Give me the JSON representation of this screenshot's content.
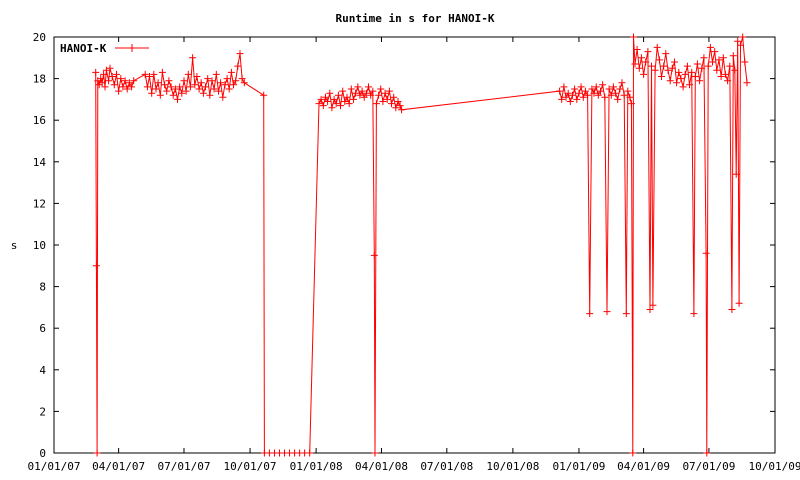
{
  "chart_data": {
    "type": "line",
    "title": "Runtime in s for HANOI-K",
    "xlabel": "",
    "ylabel": "s",
    "x_ticks": [
      "01/01/07",
      "04/01/07",
      "07/01/07",
      "10/01/07",
      "01/01/08",
      "04/01/08",
      "07/01/08",
      "10/01/08",
      "01/01/09",
      "04/01/09",
      "07/01/09",
      "10/01/09"
    ],
    "y_ticks": [
      "0",
      "2",
      "4",
      "6",
      "8",
      "10",
      "12",
      "14",
      "16",
      "18",
      "20"
    ],
    "xlim": [
      "2007-01-01",
      "2009-10-01"
    ],
    "ylim": [
      0,
      20
    ],
    "grid": false,
    "legend_position": "top-left",
    "series": [
      {
        "name": "HANOI-K",
        "color": "#ff0000",
        "marker": "plus",
        "points": [
          [
            "2007-02-28",
            18.3
          ],
          [
            "2007-03-01",
            9.0
          ],
          [
            "2007-03-02",
            0.0
          ],
          [
            "2007-03-03",
            17.9
          ],
          [
            "2007-03-05",
            17.7
          ],
          [
            "2007-03-07",
            18.0
          ],
          [
            "2007-03-09",
            17.8
          ],
          [
            "2007-03-11",
            18.2
          ],
          [
            "2007-03-13",
            17.6
          ],
          [
            "2007-03-15",
            18.4
          ],
          [
            "2007-03-18",
            17.9
          ],
          [
            "2007-03-20",
            18.5
          ],
          [
            "2007-03-23",
            18.1
          ],
          [
            "2007-03-26",
            17.7
          ],
          [
            "2007-03-29",
            18.2
          ],
          [
            "2007-04-01",
            17.4
          ],
          [
            "2007-04-04",
            18.0
          ],
          [
            "2007-04-07",
            17.6
          ],
          [
            "2007-04-10",
            17.9
          ],
          [
            "2007-04-13",
            17.5
          ],
          [
            "2007-04-16",
            17.8
          ],
          [
            "2007-04-19",
            17.6
          ],
          [
            "2007-04-22",
            17.9
          ],
          [
            "2007-05-08",
            18.2
          ],
          [
            "2007-05-11",
            17.6
          ],
          [
            "2007-05-14",
            18.1
          ],
          [
            "2007-05-17",
            17.3
          ],
          [
            "2007-05-20",
            18.2
          ],
          [
            "2007-05-23",
            17.5
          ],
          [
            "2007-05-26",
            17.8
          ],
          [
            "2007-05-29",
            17.2
          ],
          [
            "2007-06-01",
            18.3
          ],
          [
            "2007-06-04",
            17.7
          ],
          [
            "2007-06-07",
            17.4
          ],
          [
            "2007-06-10",
            17.9
          ],
          [
            "2007-06-13",
            17.6
          ],
          [
            "2007-06-16",
            17.2
          ],
          [
            "2007-06-19",
            17.5
          ],
          [
            "2007-06-22",
            17.0
          ],
          [
            "2007-06-25",
            17.6
          ],
          [
            "2007-06-28",
            17.3
          ],
          [
            "2007-07-01",
            17.9
          ],
          [
            "2007-07-04",
            17.4
          ],
          [
            "2007-07-07",
            18.2
          ],
          [
            "2007-07-10",
            17.6
          ],
          [
            "2007-07-13",
            19.0
          ],
          [
            "2007-07-16",
            17.7
          ],
          [
            "2007-07-19",
            18.1
          ],
          [
            "2007-07-22",
            17.5
          ],
          [
            "2007-07-25",
            17.8
          ],
          [
            "2007-07-28",
            17.3
          ],
          [
            "2007-07-31",
            17.6
          ],
          [
            "2007-08-03",
            18.0
          ],
          [
            "2007-08-06",
            17.2
          ],
          [
            "2007-08-09",
            17.9
          ],
          [
            "2007-08-12",
            17.5
          ],
          [
            "2007-08-15",
            18.2
          ],
          [
            "2007-08-18",
            17.4
          ],
          [
            "2007-08-21",
            17.8
          ],
          [
            "2007-08-24",
            17.1
          ],
          [
            "2007-08-27",
            17.7
          ],
          [
            "2007-08-30",
            18.0
          ],
          [
            "2007-09-02",
            17.5
          ],
          [
            "2007-09-05",
            18.3
          ],
          [
            "2007-09-08",
            17.7
          ],
          [
            "2007-09-11",
            17.9
          ],
          [
            "2007-09-14",
            18.6
          ],
          [
            "2007-09-17",
            19.2
          ],
          [
            "2007-09-20",
            18.0
          ],
          [
            "2007-09-23",
            17.8
          ],
          [
            "2007-10-20",
            17.2
          ],
          [
            "2007-10-21",
            0.0
          ],
          [
            "2007-10-28",
            0.0
          ],
          [
            "2007-11-04",
            0.0
          ],
          [
            "2007-11-11",
            0.0
          ],
          [
            "2007-11-18",
            0.0
          ],
          [
            "2007-11-25",
            0.0
          ],
          [
            "2007-12-02",
            0.0
          ],
          [
            "2007-12-09",
            0.0
          ],
          [
            "2007-12-16",
            0.0
          ],
          [
            "2007-12-23",
            0.0
          ],
          [
            "2008-01-05",
            16.8
          ],
          [
            "2008-01-08",
            17.0
          ],
          [
            "2008-01-11",
            16.7
          ],
          [
            "2008-01-14",
            17.1
          ],
          [
            "2008-01-17",
            16.9
          ],
          [
            "2008-01-20",
            17.3
          ],
          [
            "2008-01-23",
            16.6
          ],
          [
            "2008-01-26",
            17.0
          ],
          [
            "2008-01-29",
            16.8
          ],
          [
            "2008-02-01",
            17.2
          ],
          [
            "2008-02-04",
            16.7
          ],
          [
            "2008-02-07",
            17.4
          ],
          [
            "2008-02-10",
            16.9
          ],
          [
            "2008-02-13",
            17.1
          ],
          [
            "2008-02-16",
            16.8
          ],
          [
            "2008-02-19",
            17.5
          ],
          [
            "2008-02-22",
            17.0
          ],
          [
            "2008-02-25",
            17.3
          ],
          [
            "2008-02-28",
            17.6
          ],
          [
            "2008-03-02",
            17.2
          ],
          [
            "2008-03-05",
            17.4
          ],
          [
            "2008-03-08",
            17.1
          ],
          [
            "2008-03-11",
            17.3
          ],
          [
            "2008-03-14",
            17.6
          ],
          [
            "2008-03-17",
            17.2
          ],
          [
            "2008-03-20",
            17.4
          ],
          [
            "2008-03-22",
            9.5
          ],
          [
            "2008-03-23",
            0.0
          ],
          [
            "2008-03-25",
            16.8
          ],
          [
            "2008-03-28",
            17.2
          ],
          [
            "2008-03-31",
            17.5
          ],
          [
            "2008-04-03",
            16.9
          ],
          [
            "2008-04-06",
            17.3
          ],
          [
            "2008-04-09",
            17.0
          ],
          [
            "2008-04-12",
            17.4
          ],
          [
            "2008-04-15",
            16.8
          ],
          [
            "2008-04-18",
            17.1
          ],
          [
            "2008-04-21",
            16.6
          ],
          [
            "2008-04-24",
            16.9
          ],
          [
            "2008-04-27",
            16.7
          ],
          [
            "2008-04-29",
            16.5
          ],
          [
            "2008-12-05",
            17.4
          ],
          [
            "2008-12-08",
            17.0
          ],
          [
            "2008-12-11",
            17.6
          ],
          [
            "2008-12-14",
            17.1
          ],
          [
            "2008-12-17",
            17.3
          ],
          [
            "2008-12-20",
            16.9
          ],
          [
            "2008-12-23",
            17.2
          ],
          [
            "2008-12-26",
            17.5
          ],
          [
            "2008-12-29",
            17.0
          ],
          [
            "2009-01-01",
            17.3
          ],
          [
            "2009-01-04",
            17.6
          ],
          [
            "2009-01-07",
            17.1
          ],
          [
            "2009-01-10",
            17.4
          ],
          [
            "2009-01-13",
            17.2
          ],
          [
            "2009-01-16",
            6.7
          ],
          [
            "2009-01-19",
            17.5
          ],
          [
            "2009-01-22",
            17.3
          ],
          [
            "2009-01-25",
            17.6
          ],
          [
            "2009-01-28",
            17.2
          ],
          [
            "2009-01-31",
            17.4
          ],
          [
            "2009-02-03",
            17.7
          ],
          [
            "2009-02-06",
            17.1
          ],
          [
            "2009-02-09",
            6.8
          ],
          [
            "2009-02-12",
            17.5
          ],
          [
            "2009-02-15",
            17.2
          ],
          [
            "2009-02-18",
            17.6
          ],
          [
            "2009-02-21",
            17.3
          ],
          [
            "2009-02-24",
            17.0
          ],
          [
            "2009-02-27",
            17.5
          ],
          [
            "2009-03-02",
            17.8
          ],
          [
            "2009-03-05",
            17.2
          ],
          [
            "2009-03-08",
            6.7
          ],
          [
            "2009-03-10",
            17.4
          ],
          [
            "2009-03-13",
            17.1
          ],
          [
            "2009-03-15",
            16.8
          ],
          [
            "2009-03-17",
            0.0
          ],
          [
            "2009-03-18",
            20.0
          ],
          [
            "2009-03-20",
            18.7
          ],
          [
            "2009-03-23",
            19.4
          ],
          [
            "2009-03-26",
            18.5
          ],
          [
            "2009-03-29",
            19.0
          ],
          [
            "2009-04-01",
            18.2
          ],
          [
            "2009-04-04",
            18.8
          ],
          [
            "2009-04-07",
            19.3
          ],
          [
            "2009-04-10",
            6.9
          ],
          [
            "2009-04-12",
            18.6
          ],
          [
            "2009-04-14",
            7.1
          ],
          [
            "2009-04-17",
            18.4
          ],
          [
            "2009-04-20",
            19.5
          ],
          [
            "2009-04-23",
            18.9
          ],
          [
            "2009-04-26",
            18.1
          ],
          [
            "2009-04-29",
            18.6
          ],
          [
            "2009-05-02",
            19.2
          ],
          [
            "2009-05-05",
            18.4
          ],
          [
            "2009-05-08",
            17.9
          ],
          [
            "2009-05-11",
            18.5
          ],
          [
            "2009-05-14",
            18.8
          ],
          [
            "2009-05-17",
            17.8
          ],
          [
            "2009-05-20",
            18.3
          ],
          [
            "2009-05-23",
            18.0
          ],
          [
            "2009-05-26",
            17.6
          ],
          [
            "2009-05-29",
            18.2
          ],
          [
            "2009-06-01",
            18.6
          ],
          [
            "2009-06-04",
            17.7
          ],
          [
            "2009-06-07",
            18.3
          ],
          [
            "2009-06-10",
            6.7
          ],
          [
            "2009-06-12",
            18.1
          ],
          [
            "2009-06-15",
            18.7
          ],
          [
            "2009-06-18",
            17.9
          ],
          [
            "2009-06-21",
            18.5
          ],
          [
            "2009-06-24",
            19.0
          ],
          [
            "2009-06-27",
            9.6
          ],
          [
            "2009-06-28",
            0.0
          ],
          [
            "2009-06-30",
            18.6
          ],
          [
            "2009-07-03",
            19.5
          ],
          [
            "2009-07-06",
            18.8
          ],
          [
            "2009-07-09",
            19.3
          ],
          [
            "2009-07-12",
            18.4
          ],
          [
            "2009-07-15",
            18.9
          ],
          [
            "2009-07-18",
            18.1
          ],
          [
            "2009-07-21",
            19.0
          ],
          [
            "2009-07-24",
            18.2
          ],
          [
            "2009-07-27",
            17.9
          ],
          [
            "2009-07-30",
            18.6
          ],
          [
            "2009-08-02",
            6.9
          ],
          [
            "2009-08-04",
            19.1
          ],
          [
            "2009-08-06",
            18.4
          ],
          [
            "2009-08-08",
            13.4
          ],
          [
            "2009-08-10",
            19.8
          ],
          [
            "2009-08-12",
            7.2
          ],
          [
            "2009-08-14",
            19.6
          ],
          [
            "2009-08-17",
            20.0
          ],
          [
            "2009-08-20",
            18.8
          ],
          [
            "2009-08-23",
            17.8
          ]
        ]
      }
    ]
  }
}
